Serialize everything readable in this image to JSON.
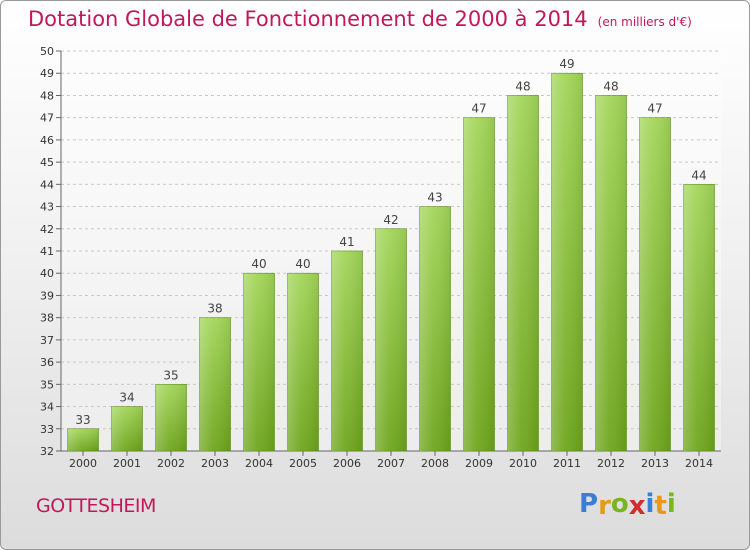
{
  "title": "Dotation Globale de Fonctionnement de 2000 à 2014",
  "unit": "(en milliers d'€)",
  "commune": "GOTTESHEIM",
  "brand": {
    "letters": [
      {
        "ch": "P",
        "color": "#3a7fd5"
      },
      {
        "ch": "r",
        "color": "#e59a1a"
      },
      {
        "ch": "o",
        "color": "#7ab51d"
      },
      {
        "ch": "x",
        "color": "#d12d2d"
      },
      {
        "ch": "i",
        "color": "#3a7fd5"
      },
      {
        "ch": "t",
        "color": "#e59a1a"
      },
      {
        "ch": "i",
        "color": "#7ab51d"
      }
    ]
  },
  "chart_data": {
    "type": "bar",
    "title": "Dotation Globale de Fonctionnement de 2000 à 2014",
    "categories": [
      "2000",
      "2001",
      "2002",
      "2003",
      "2004",
      "2005",
      "2006",
      "2007",
      "2008",
      "2009",
      "2010",
      "2011",
      "2012",
      "2013",
      "2014"
    ],
    "values": [
      33,
      34,
      35,
      38,
      40,
      40,
      41,
      42,
      43,
      47,
      48,
      49,
      48,
      47,
      44
    ],
    "ylim": [
      32,
      50
    ],
    "yticks": [
      32,
      33,
      34,
      35,
      36,
      37,
      38,
      39,
      40,
      41,
      42,
      43,
      44,
      45,
      46,
      47,
      48,
      49,
      50
    ],
    "grid": true,
    "bar_color": "#8cc63f"
  }
}
